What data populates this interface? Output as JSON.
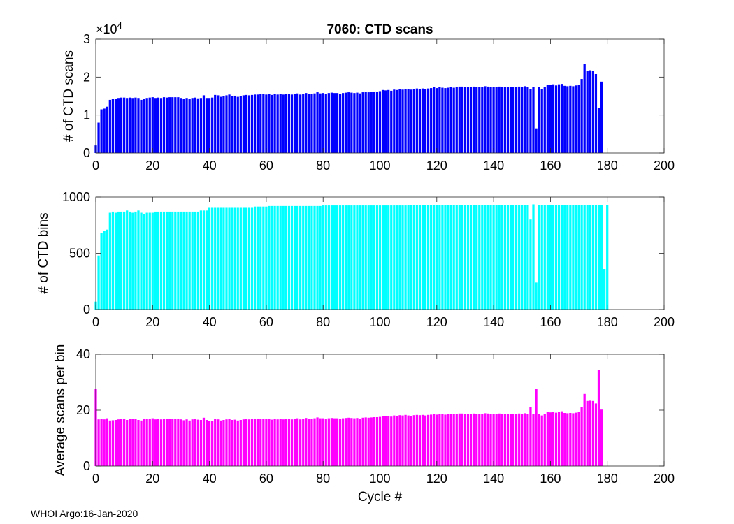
{
  "chart_data": [
    {
      "type": "bar",
      "title": "7060: CTD scans",
      "ylabel": "# of CTD scans",
      "xlabel": "",
      "exponent_label": "×10",
      "exponent_power": "4",
      "color": "#0000ff",
      "xlim": [
        0,
        200
      ],
      "ylim": [
        0,
        30000
      ],
      "xticks": [
        0,
        20,
        40,
        60,
        80,
        100,
        120,
        140,
        160,
        180,
        200
      ],
      "yticks": [
        0,
        10000,
        20000,
        30000
      ],
      "ytick_labels": [
        "0",
        "1",
        "2",
        "3"
      ],
      "x_start": 0,
      "values": [
        2000,
        8000,
        11500,
        11700,
        12200,
        14000,
        14300,
        14200,
        14500,
        14600,
        14600,
        14500,
        14600,
        14500,
        14600,
        14500,
        14000,
        14300,
        14500,
        14600,
        14700,
        14500,
        14600,
        14500,
        14700,
        14600,
        14700,
        14700,
        14700,
        14700,
        14500,
        14300,
        14500,
        14200,
        14500,
        14600,
        14400,
        14500,
        15200,
        14500,
        14500,
        14600,
        15300,
        15200,
        14800,
        15000,
        15200,
        15400,
        15000,
        15100,
        14800,
        15000,
        15200,
        15300,
        15200,
        15300,
        15400,
        15400,
        15600,
        15500,
        15400,
        15600,
        15300,
        15500,
        15400,
        15500,
        15400,
        15600,
        15500,
        15400,
        15500,
        15700,
        15400,
        15600,
        15800,
        15600,
        15600,
        15700,
        16000,
        15700,
        15800,
        15600,
        15800,
        15900,
        15800,
        15800,
        15600,
        15800,
        15900,
        16000,
        15900,
        15800,
        15900,
        15700,
        16000,
        16100,
        16000,
        16100,
        16200,
        16200,
        16300,
        16600,
        16500,
        16600,
        16400,
        16700,
        16600,
        16800,
        16700,
        16900,
        16800,
        16700,
        16900,
        17000,
        16900,
        17000,
        16800,
        17000,
        17100,
        17300,
        17100,
        17300,
        17200,
        17100,
        17200,
        17400,
        17200,
        17300,
        17500,
        17500,
        17300,
        17300,
        17400,
        17500,
        17300,
        17400,
        17300,
        17600,
        17500,
        17400,
        17300,
        17300,
        17500,
        17400,
        17400,
        17300,
        17400,
        17300,
        17400,
        17500,
        17300,
        17600,
        17400,
        16800,
        17400,
        6500,
        17300,
        16800,
        17400,
        18000,
        17900,
        18100,
        17800,
        18100,
        18200,
        17700,
        17600,
        17700,
        17600,
        17800,
        18000,
        19500,
        23500,
        21700,
        21800,
        21700,
        20800,
        11800,
        18800
      ]
    },
    {
      "type": "bar",
      "title": "",
      "ylabel": "# of CTD bins",
      "xlabel": "",
      "color": "#00ffff",
      "xlim": [
        0,
        200
      ],
      "ylim": [
        0,
        1000
      ],
      "xticks": [
        0,
        20,
        40,
        60,
        80,
        100,
        120,
        140,
        160,
        180,
        200
      ],
      "yticks": [
        0,
        500,
        1000
      ],
      "ytick_labels": [
        "0",
        "500",
        "1000"
      ],
      "x_start": 0,
      "values": [
        70,
        480,
        680,
        700,
        710,
        860,
        870,
        860,
        870,
        870,
        870,
        880,
        870,
        860,
        870,
        880,
        860,
        850,
        860,
        860,
        860,
        870,
        870,
        870,
        870,
        870,
        870,
        870,
        870,
        870,
        870,
        870,
        870,
        870,
        870,
        870,
        870,
        880,
        880,
        880,
        910,
        910,
        910,
        910,
        910,
        910,
        910,
        910,
        910,
        910,
        910,
        910,
        910,
        910,
        910,
        910,
        915,
        915,
        915,
        915,
        915,
        920,
        920,
        920,
        920,
        920,
        920,
        920,
        920,
        920,
        920,
        920,
        920,
        920,
        920,
        920,
        920,
        920,
        920,
        920,
        925,
        925,
        925,
        925,
        925,
        925,
        925,
        925,
        925,
        925,
        925,
        925,
        925,
        925,
        925,
        925,
        925,
        925,
        925,
        925,
        925,
        925,
        925,
        925,
        925,
        925,
        925,
        925,
        925,
        925,
        930,
        930,
        930,
        930,
        930,
        930,
        930,
        930,
        930,
        930,
        930,
        930,
        930,
        930,
        930,
        930,
        930,
        930,
        930,
        930,
        930,
        930,
        930,
        930,
        930,
        930,
        930,
        930,
        930,
        930,
        930,
        930,
        930,
        930,
        930,
        930,
        930,
        930,
        930,
        930,
        930,
        930,
        930,
        800,
        935,
        240,
        930,
        930,
        930,
        930,
        930,
        930,
        930,
        930,
        930,
        930,
        930,
        930,
        930,
        930,
        930,
        930,
        930,
        930,
        930,
        930,
        930,
        930,
        930,
        360,
        930
      ]
    },
    {
      "type": "bar",
      "title": "",
      "ylabel": "Average scans per bin",
      "xlabel": "Cycle #",
      "color": "#ff00ff",
      "xlim": [
        0,
        200
      ],
      "ylim": [
        0,
        40
      ],
      "xticks": [
        0,
        20,
        40,
        60,
        80,
        100,
        120,
        140,
        160,
        180,
        200
      ],
      "yticks": [
        0,
        20,
        40
      ],
      "ytick_labels": [
        "0",
        "20",
        "40"
      ],
      "x_start": 0,
      "values": [
        27.5,
        16.7,
        17.0,
        16.7,
        17.1,
        16.3,
        16.4,
        16.5,
        16.7,
        16.8,
        16.8,
        16.5,
        16.8,
        16.9,
        16.8,
        16.5,
        16.3,
        16.8,
        16.9,
        17.0,
        17.1,
        16.7,
        16.8,
        16.7,
        16.9,
        16.8,
        16.9,
        16.9,
        16.9,
        16.9,
        16.7,
        16.4,
        16.7,
        16.3,
        16.7,
        16.8,
        16.6,
        16.5,
        17.3,
        16.5,
        16.0,
        16.0,
        16.8,
        16.7,
        16.3,
        16.5,
        16.7,
        16.9,
        16.5,
        16.6,
        16.3,
        16.5,
        16.7,
        16.8,
        16.7,
        16.8,
        16.8,
        16.8,
        17.0,
        16.9,
        16.8,
        17.0,
        16.6,
        16.8,
        16.7,
        16.8,
        16.7,
        17.0,
        16.8,
        16.7,
        16.8,
        17.1,
        16.7,
        17.0,
        17.2,
        17.0,
        17.0,
        17.1,
        17.4,
        17.1,
        17.1,
        16.9,
        17.1,
        17.2,
        17.1,
        17.1,
        16.9,
        17.1,
        17.2,
        17.3,
        17.2,
        17.1,
        17.2,
        17.0,
        17.3,
        17.4,
        17.3,
        17.4,
        17.5,
        17.5,
        17.6,
        17.9,
        17.8,
        17.9,
        17.7,
        18.1,
        17.9,
        18.2,
        18.1,
        18.3,
        18.1,
        18.0,
        18.2,
        18.3,
        18.2,
        18.3,
        18.1,
        18.3,
        18.4,
        18.6,
        18.4,
        18.6,
        18.5,
        18.4,
        18.5,
        18.7,
        18.5,
        18.6,
        18.8,
        18.8,
        18.6,
        18.6,
        18.7,
        18.8,
        18.6,
        18.7,
        18.6,
        18.9,
        18.8,
        18.7,
        18.6,
        18.6,
        18.8,
        18.7,
        18.7,
        18.6,
        18.7,
        18.6,
        18.7,
        18.8,
        18.6,
        18.9,
        18.7,
        21.0,
        18.6,
        27.5,
        18.6,
        18.1,
        18.7,
        19.4,
        19.2,
        19.5,
        19.1,
        19.5,
        19.6,
        19.0,
        18.9,
        19.0,
        18.9,
        19.1,
        19.4,
        21.0,
        25.8,
        23.3,
        23.4,
        23.3,
        22.4,
        34.5,
        20.2
      ]
    }
  ],
  "footer": "WHOI Argo:16-Jan-2020"
}
